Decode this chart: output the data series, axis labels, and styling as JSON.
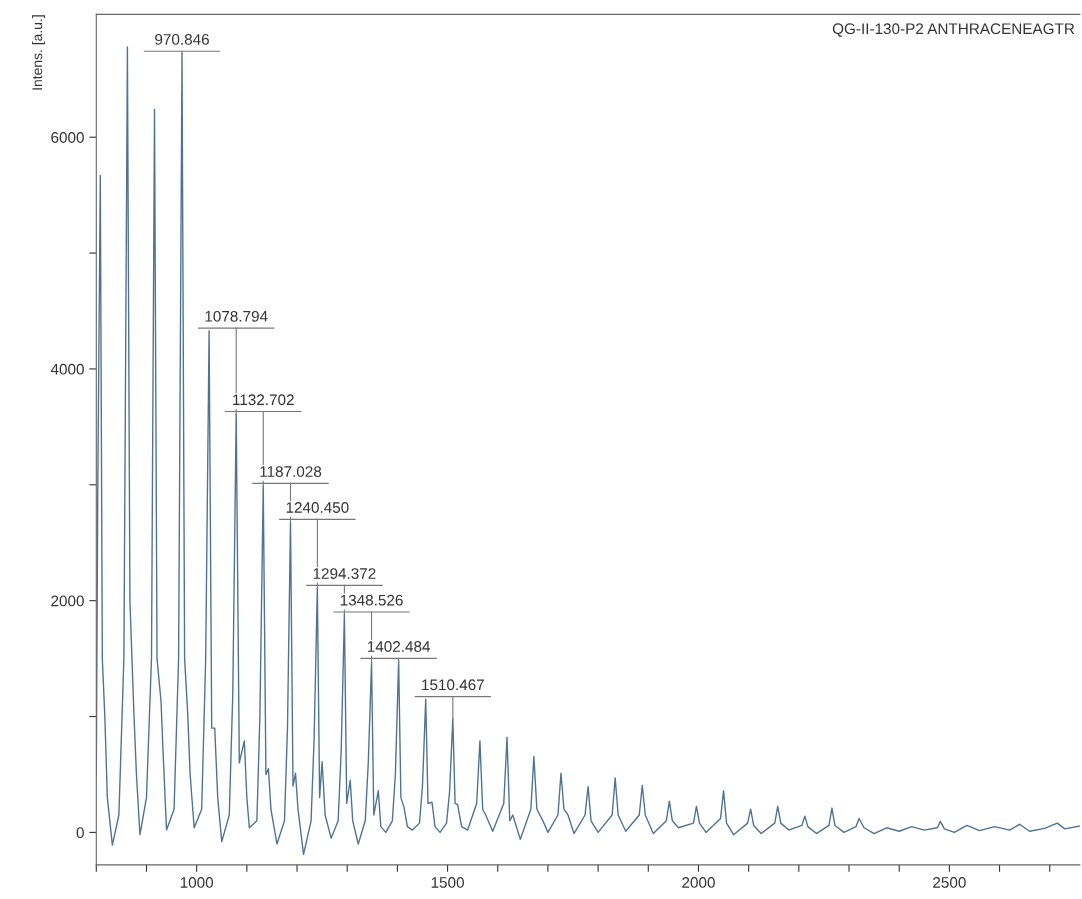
{
  "chart_data": {
    "type": "line",
    "title": "QG-II-130-P2 ANTHRACENEAGTR",
    "ylabel": "Intens. [a.u.]",
    "xlim": [
      800,
      2760
    ],
    "ylim": [
      -280,
      7060
    ],
    "xticks": [
      {
        "value": 800,
        "label": null
      },
      {
        "value": 900,
        "label": null
      },
      1000,
      {
        "value": 1100,
        "label": null
      },
      {
        "value": 1200,
        "label": null
      },
      {
        "value": 1300,
        "label": null
      },
      {
        "value": 1400,
        "label": null
      },
      1500,
      {
        "value": 1600,
        "label": null
      },
      {
        "value": 1700,
        "label": null
      },
      {
        "value": 1800,
        "label": null
      },
      {
        "value": 1900,
        "label": null
      },
      2000,
      {
        "value": 2100,
        "label": null
      },
      {
        "value": 2200,
        "label": null
      },
      {
        "value": 2300,
        "label": null
      },
      {
        "value": 2400,
        "label": null
      },
      2500,
      {
        "value": 2600,
        "label": null
      },
      {
        "value": 2700,
        "label": null
      }
    ],
    "yticks": [
      0,
      {
        "value": 1000,
        "label": null
      },
      2000,
      {
        "value": 3000,
        "label": null
      },
      4000,
      {
        "value": 5000,
        "label": null
      },
      6000
    ],
    "grid": false,
    "marker": "none",
    "line_style": "solid",
    "series": [
      {
        "color": "#4f7391",
        "x": [
          800,
          803,
          808,
          812,
          817,
          822,
          832,
          845,
          855,
          862,
          867,
          875,
          880,
          887,
          900,
          910,
          916,
          921,
          929,
          933,
          940,
          955,
          964,
          970.8,
          976,
          982,
          987,
          995,
          1010,
          1018,
          1024.8,
          1030,
          1036,
          1042,
          1050,
          1065,
          1072,
          1078.8,
          1085,
          1095,
          1100,
          1105,
          1120,
          1126,
          1132.7,
          1138,
          1143,
          1148,
          1160,
          1175,
          1181,
          1187,
          1192,
          1197,
          1202,
          1213,
          1228,
          1234,
          1240.5,
          1245,
          1250,
          1256,
          1268,
          1282,
          1288,
          1294.4,
          1299,
          1306,
          1311,
          1322,
          1336,
          1342,
          1348.5,
          1353,
          1362,
          1367,
          1377,
          1390,
          1396,
          1402.5,
          1407,
          1413,
          1420,
          1430,
          1444,
          1450,
          1456.5,
          1461,
          1469,
          1475,
          1485,
          1498,
          1504,
          1510.5,
          1515,
          1520,
          1528,
          1540,
          1558,
          1564.5,
          1570,
          1576,
          1590,
          1612,
          1618.5,
          1624,
          1630,
          1645,
          1666,
          1672,
          1678,
          1690,
          1700,
          1720,
          1726,
          1732,
          1740,
          1752,
          1774,
          1780,
          1786,
          1800,
          1828,
          1834,
          1840,
          1855,
          1882,
          1888,
          1894,
          1910,
          1936,
          1942,
          1948,
          1960,
          1990,
          1996,
          2002,
          2015,
          2044,
          2050,
          2056,
          2070,
          2098,
          2104,
          2110,
          2125,
          2152,
          2158,
          2164,
          2180,
          2206,
          2212,
          2218,
          2235,
          2260,
          2266,
          2272,
          2290,
          2314,
          2320,
          2330,
          2350,
          2375,
          2400,
          2425,
          2450,
          2476,
          2482,
          2490,
          2510,
          2535,
          2560,
          2590,
          2620,
          2640,
          2660,
          2690,
          2715,
          2730,
          2760
        ],
        "values": [
          490,
          3000,
          5670,
          1500,
          1000,
          300,
          -110,
          150,
          1500,
          6780,
          2000,
          1020,
          500,
          -20,
          300,
          1500,
          6240,
          1500,
          1130,
          700,
          20,
          200,
          1500,
          6720,
          1500,
          1040,
          500,
          40,
          200,
          1500,
          4330,
          900,
          900,
          300,
          -80,
          150,
          1200,
          3610,
          600,
          790,
          300,
          40,
          100,
          1000,
          2990,
          500,
          550,
          200,
          -100,
          100,
          900,
          2680,
          400,
          510,
          200,
          -190,
          100,
          800,
          2110,
          300,
          610,
          150,
          -50,
          100,
          700,
          1880,
          250,
          450,
          100,
          -100,
          100,
          600,
          1460,
          150,
          360,
          50,
          0,
          100,
          500,
          1480,
          300,
          220,
          50,
          20,
          80,
          400,
          1150,
          250,
          260,
          50,
          0,
          80,
          350,
          980,
          250,
          240,
          50,
          20,
          250,
          790,
          200,
          150,
          10,
          250,
          820,
          100,
          150,
          -60,
          200,
          655,
          200,
          100,
          0,
          150,
          510,
          200,
          150,
          -10,
          150,
          395,
          100,
          0,
          150,
          470,
          150,
          10,
          150,
          405,
          150,
          -10,
          100,
          270,
          100,
          40,
          80,
          225,
          80,
          0,
          120,
          360,
          80,
          -20,
          80,
          200,
          60,
          -10,
          80,
          225,
          80,
          20,
          60,
          140,
          50,
          -10,
          60,
          210,
          60,
          0,
          50,
          120,
          40,
          -10,
          40,
          10,
          50,
          20,
          40,
          95,
          30,
          0,
          60,
          15,
          50,
          20,
          70,
          10,
          35,
          80,
          30,
          55
        ]
      }
    ],
    "annotations": [
      {
        "text": "970.846",
        "x": 970.8,
        "y": 6720
      },
      {
        "text": "1078.794",
        "x": 1078.8,
        "y": 3610
      },
      {
        "text": "1132.702",
        "x": 1132.7,
        "y": 2990
      },
      {
        "text": "1187.028",
        "x": 1187,
        "y": 2680
      },
      {
        "text": "1240.450",
        "x": 1240.5,
        "y": 2110
      },
      {
        "text": "1294.372",
        "x": 1294.4,
        "y": 1880
      },
      {
        "text": "1348.526",
        "x": 1348.5,
        "y": 1460
      },
      {
        "text": "1402.484",
        "x": 1402.5,
        "y": 1480
      },
      {
        "text": "1510.467",
        "x": 1510.5,
        "y": 980
      }
    ]
  }
}
